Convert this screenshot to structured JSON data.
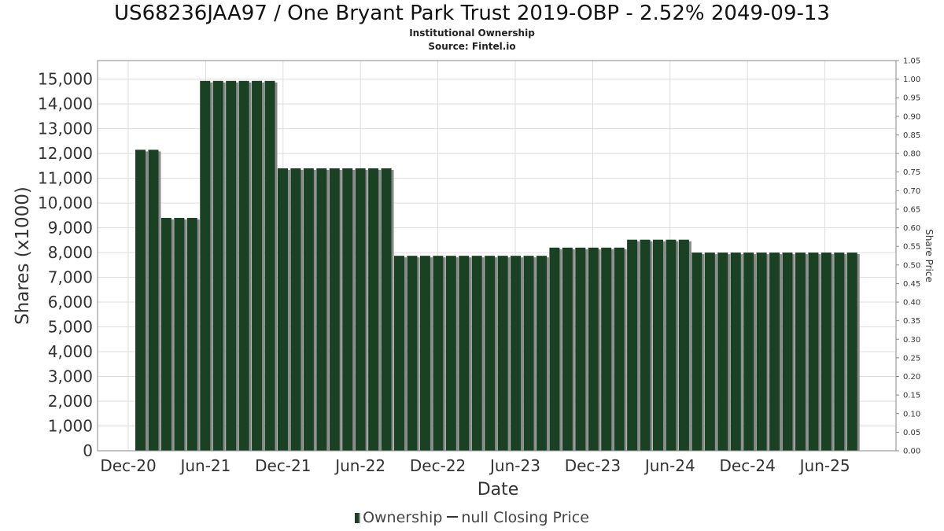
{
  "title": "US68236JAA97 / One Bryant Park Trust 2019-OBP - 2.52% 2049-09-13",
  "subtitle": "Institutional Ownership",
  "source": "Source: Fintel.io",
  "colors": {
    "bar": "#1b4125",
    "bar_shadow": "#8a8a8a",
    "grid": "#dddddd",
    "axis": "#888888"
  },
  "legend": {
    "ownership_label": "Ownership",
    "price_label": "null Closing Price"
  },
  "chart_data": {
    "type": "bar",
    "title": "US68236JAA97 / One Bryant Park Trust 2019-OBP - 2.52% 2049-09-13",
    "xlabel": "Date",
    "ylabel": "Shares (x1000)",
    "y2label": "Share Price",
    "ylim": [
      0,
      15750
    ],
    "y2lim": [
      0,
      1.05
    ],
    "grid": true,
    "legend_position": "bottom-center",
    "x_tick_labels": [
      "Dec-20",
      "Jun-21",
      "Dec-21",
      "Jun-22",
      "Dec-22",
      "Jun-23",
      "Dec-23",
      "Jun-24",
      "Dec-24",
      "Jun-25"
    ],
    "y_tick_labels": [
      "0",
      "1,000",
      "2,000",
      "3,000",
      "4,000",
      "5,000",
      "6,000",
      "7,000",
      "8,000",
      "9,000",
      "10,000",
      "11,000",
      "12,000",
      "13,000",
      "14,000",
      "15,000"
    ],
    "y2_tick_labels": [
      "0.00",
      "0.05",
      "0.10",
      "0.15",
      "0.20",
      "0.25",
      "0.30",
      "0.35",
      "0.40",
      "0.45",
      "0.50",
      "0.55",
      "0.60",
      "0.65",
      "0.70",
      "0.75",
      "0.80",
      "0.85",
      "0.90",
      "0.95",
      "1.00",
      "1.05"
    ],
    "series": [
      {
        "name": "Ownership",
        "values": [
          12150,
          12150,
          9400,
          9400,
          9400,
          14930,
          14930,
          14930,
          14930,
          14930,
          14930,
          11400,
          11400,
          11400,
          11400,
          11400,
          11400,
          11400,
          11400,
          11400,
          7870,
          7870,
          7870,
          7870,
          7870,
          7870,
          7870,
          7870,
          7870,
          7870,
          7870,
          7870,
          8200,
          8200,
          8200,
          8200,
          8200,
          8200,
          8520,
          8520,
          8520,
          8520,
          8520,
          8000,
          8000,
          8000,
          8000,
          8000,
          8000,
          8000,
          8000,
          8000,
          8000,
          8000,
          8000,
          8000
        ]
      },
      {
        "name": "null Closing Price",
        "values": []
      }
    ]
  }
}
